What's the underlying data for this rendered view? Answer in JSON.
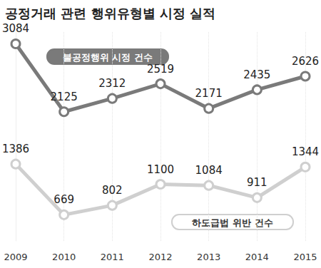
{
  "chart_data": {
    "type": "line",
    "title": "공정거래 관련 행위유형별 시정 실적",
    "categories": [
      "2009",
      "2010",
      "2011",
      "2012",
      "2013",
      "2014",
      "2015"
    ],
    "series": [
      {
        "name": "불공정행위 시정 건수",
        "color": "#7a7a7a",
        "values": [
          3084,
          2125,
          2312,
          2519,
          2171,
          2435,
          2626
        ]
      },
      {
        "name": "하도급법 위반 건수",
        "color": "#cfcfcf",
        "values": [
          1386,
          669,
          802,
          1100,
          1084,
          911,
          1344
        ]
      }
    ],
    "ylim": [
      300,
      3250
    ],
    "tick_labels": "x",
    "grid": "x",
    "data_labels": true,
    "marker": "circle"
  }
}
